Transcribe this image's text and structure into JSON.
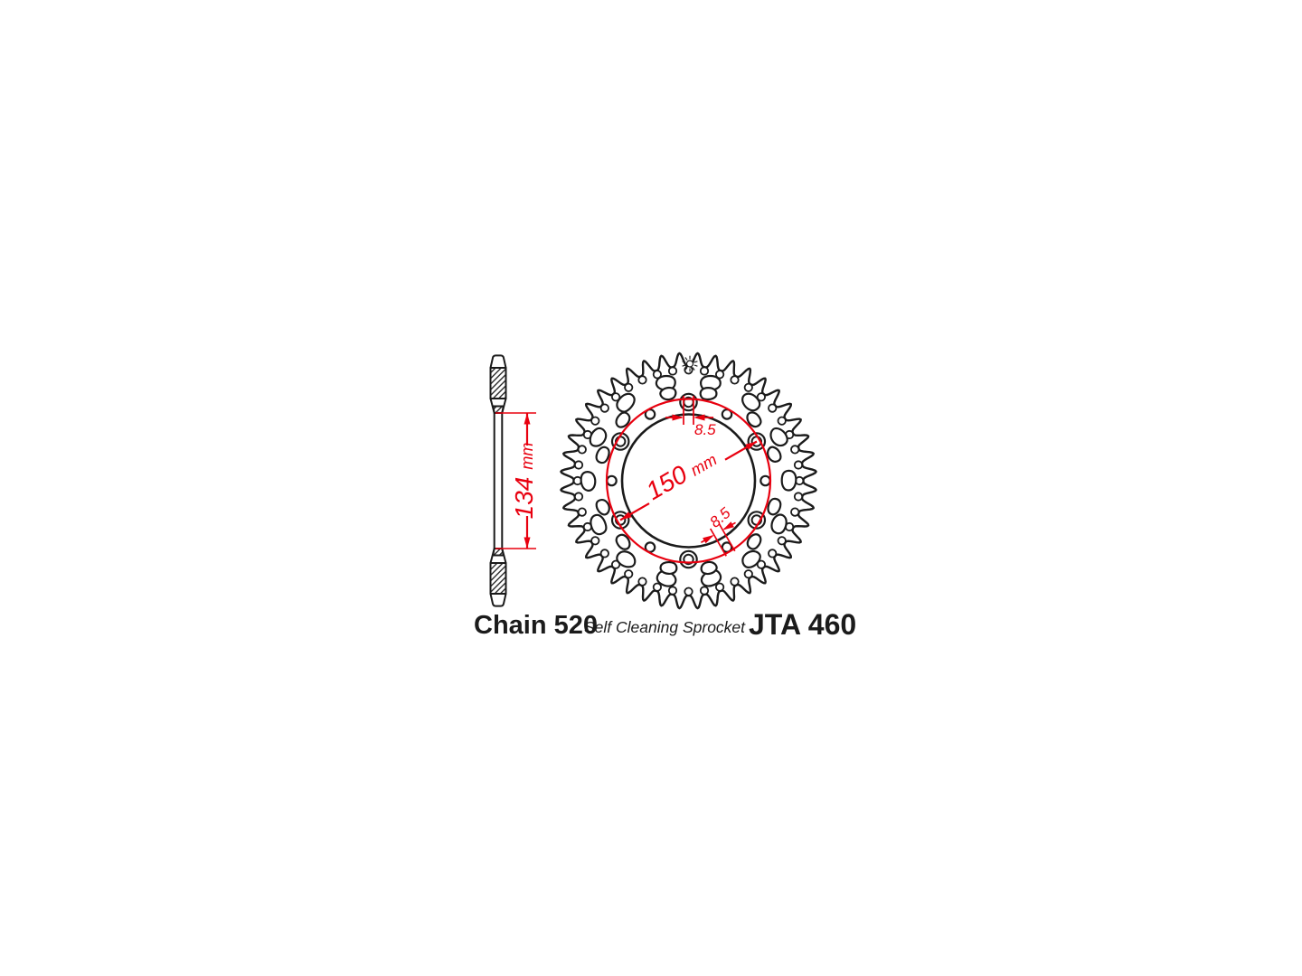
{
  "diagram": {
    "colors": {
      "ink": "#1b1b1b",
      "accent": "#e8000f",
      "background": "#ffffff"
    },
    "side_view": {
      "hub_width_dimension": {
        "value": "134",
        "unit": "mm"
      }
    },
    "front_view": {
      "teeth": 44,
      "bolt_holes": 6,
      "relief_holes": 6,
      "lightening_holes_outer": 14,
      "lightening_holes_inner": 12,
      "bolt_circle_dimension": {
        "value": "150",
        "unit": "mm"
      },
      "bolt_hole_diameter": "8.5",
      "relief_hole_diameter": "8.5",
      "marking_icon": "sun-burst"
    },
    "footer": {
      "chain_label": "Chain 520",
      "note": "Self Cleaning Sprocket",
      "part_number": "JTA 460"
    }
  }
}
